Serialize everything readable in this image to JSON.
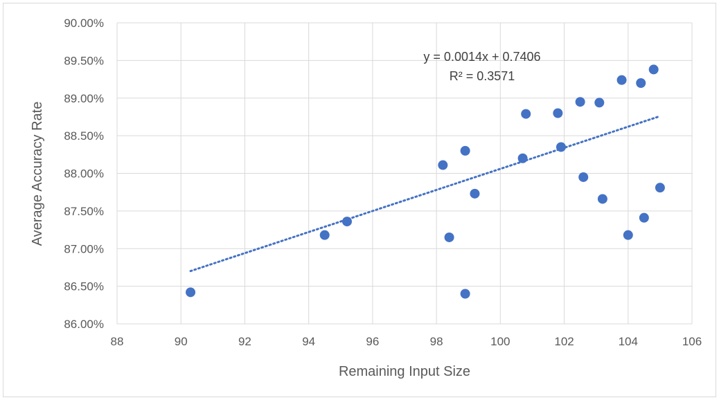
{
  "chart_data": {
    "type": "scatter",
    "title": "",
    "xlabel": "Remaining Input Size",
    "ylabel": "Average Accuracy Rate",
    "xlim": [
      88,
      106
    ],
    "ylim": [
      0.86,
      0.9
    ],
    "x_ticks": [
      "88",
      "90",
      "92",
      "94",
      "96",
      "98",
      "100",
      "102",
      "104",
      "106"
    ],
    "y_ticks": [
      "86.00%",
      "86.50%",
      "87.00%",
      "87.50%",
      "88.00%",
      "88.50%",
      "89.00%",
      "89.50%",
      "90.00%"
    ],
    "grid": true,
    "legend": "none",
    "marker_color": "#4472c4",
    "series": [
      {
        "points": [
          {
            "x": 90.3,
            "y": 0.8642
          },
          {
            "x": 94.5,
            "y": 0.8718
          },
          {
            "x": 95.2,
            "y": 0.8736
          },
          {
            "x": 98.2,
            "y": 0.8811
          },
          {
            "x": 98.4,
            "y": 0.8715
          },
          {
            "x": 98.9,
            "y": 0.864
          },
          {
            "x": 98.9,
            "y": 0.883
          },
          {
            "x": 99.2,
            "y": 0.8773
          },
          {
            "x": 100.7,
            "y": 0.882
          },
          {
            "x": 100.8,
            "y": 0.8879
          },
          {
            "x": 101.8,
            "y": 0.888
          },
          {
            "x": 101.9,
            "y": 0.8835
          },
          {
            "x": 102.5,
            "y": 0.8895
          },
          {
            "x": 102.6,
            "y": 0.8795
          },
          {
            "x": 103.1,
            "y": 0.8894
          },
          {
            "x": 103.2,
            "y": 0.8766
          },
          {
            "x": 103.8,
            "y": 0.8924
          },
          {
            "x": 104.0,
            "y": 0.8718
          },
          {
            "x": 104.4,
            "y": 0.892
          },
          {
            "x": 104.5,
            "y": 0.8741
          },
          {
            "x": 104.8,
            "y": 0.8938
          },
          {
            "x": 105.0,
            "y": 0.8781
          }
        ]
      }
    ],
    "trendline": {
      "type": "linear",
      "style": "dotted",
      "x_range": [
        90.3,
        105.0
      ],
      "slope": 0.0014,
      "intercept": 0.7406,
      "equation_text": "y = 0.0014x + 0.7406",
      "r2_text": "R² = 0.3571"
    }
  }
}
